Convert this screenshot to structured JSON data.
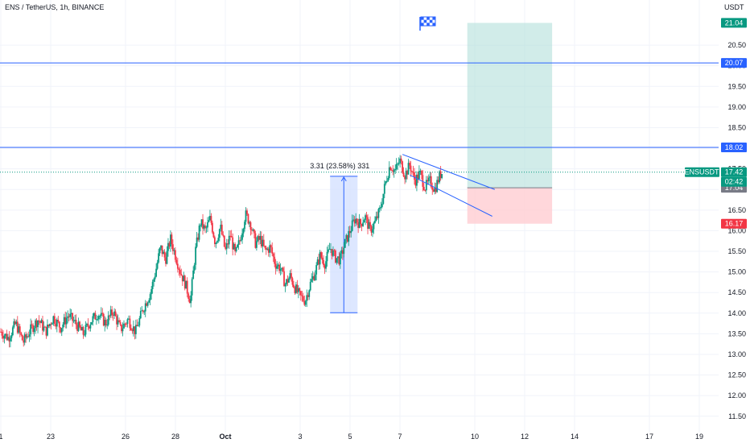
{
  "header": {
    "symbol_title": "ENS / TetherUS, 1h, BINANCE",
    "currency": "USDT",
    "ticker_badge": "ENSUSDT",
    "countdown": "02:42"
  },
  "colors": {
    "up": "#089981",
    "down": "#f23645",
    "line": "#2962ff",
    "target_fill": "#b2dfdb",
    "stop_fill": "#ffcdd2",
    "measure_fill": "#d4e1ff",
    "grid": "#f0f3fa",
    "text": "#131722"
  },
  "chart_data": {
    "type": "candlestick",
    "title": "ENS / TetherUS, 1h, BINANCE",
    "ylabel": "USDT",
    "ylim": [
      11.3,
      21.4
    ],
    "y_ticks": [
      11.5,
      12.0,
      12.5,
      13.0,
      13.5,
      14.0,
      14.5,
      15.0,
      15.5,
      16.0,
      16.5,
      17.0,
      17.5,
      18.0,
      18.5,
      19.0,
      19.5,
      20.0,
      20.5
    ],
    "x_tick_labels": [
      {
        "label": "1",
        "day": 21
      },
      {
        "label": "23",
        "day": 23
      },
      {
        "label": "26",
        "day": 26
      },
      {
        "label": "28",
        "day": 28
      },
      {
        "label": "Oct",
        "day": 30
      },
      {
        "label": "3",
        "day": 33
      },
      {
        "label": "5",
        "day": 35
      },
      {
        "label": "7",
        "day": 37
      },
      {
        "label": "10",
        "day": 40
      },
      {
        "label": "12",
        "day": 42
      },
      {
        "label": "14",
        "day": 44
      },
      {
        "label": "17",
        "day": 47
      },
      {
        "label": "19",
        "day": 49
      }
    ],
    "price_path": [
      [
        21.0,
        13.55
      ],
      [
        21.3,
        13.4
      ],
      [
        21.6,
        13.75
      ],
      [
        21.9,
        13.3
      ],
      [
        22.2,
        13.6
      ],
      [
        22.5,
        13.85
      ],
      [
        22.8,
        13.55
      ],
      [
        23.1,
        13.9
      ],
      [
        23.4,
        13.65
      ],
      [
        23.7,
        13.95
      ],
      [
        24.0,
        13.75
      ],
      [
        24.3,
        13.5
      ],
      [
        24.6,
        13.8
      ],
      [
        24.9,
        14.0
      ],
      [
        25.2,
        13.75
      ],
      [
        25.5,
        14.05
      ],
      [
        25.8,
        13.6
      ],
      [
        26.1,
        13.85
      ],
      [
        26.4,
        13.55
      ],
      [
        26.7,
        14.1
      ],
      [
        27.0,
        14.5
      ],
      [
        27.2,
        15.0
      ],
      [
        27.4,
        15.6
      ],
      [
        27.6,
        15.3
      ],
      [
        27.8,
        15.8
      ],
      [
        28.0,
        15.4
      ],
      [
        28.2,
        15.0
      ],
      [
        28.4,
        14.7
      ],
      [
        28.6,
        14.3
      ],
      [
        28.8,
        15.5
      ],
      [
        29.0,
        16.2
      ],
      [
        29.2,
        16.0
      ],
      [
        29.4,
        16.3
      ],
      [
        29.6,
        15.7
      ],
      [
        29.8,
        16.1
      ],
      [
        30.0,
        15.5
      ],
      [
        30.2,
        15.9
      ],
      [
        30.4,
        15.4
      ],
      [
        30.6,
        15.8
      ],
      [
        30.8,
        16.4
      ],
      [
        31.0,
        16.2
      ],
      [
        31.2,
        15.7
      ],
      [
        31.4,
        15.8
      ],
      [
        31.6,
        15.5
      ],
      [
        31.8,
        15.6
      ],
      [
        32.0,
        15.2
      ],
      [
        32.2,
        15.1
      ],
      [
        32.4,
        14.7
      ],
      [
        32.6,
        14.9
      ],
      [
        32.8,
        14.6
      ],
      [
        33.0,
        14.4
      ],
      [
        33.2,
        14.3
      ],
      [
        33.4,
        14.7
      ],
      [
        33.6,
        15.0
      ],
      [
        33.8,
        15.4
      ],
      [
        34.0,
        15.2
      ],
      [
        34.2,
        15.6
      ],
      [
        34.4,
        15.35
      ],
      [
        34.6,
        15.3
      ],
      [
        34.8,
        15.7
      ],
      [
        35.0,
        16.0
      ],
      [
        35.2,
        16.3
      ],
      [
        35.4,
        16.15
      ],
      [
        35.6,
        16.35
      ],
      [
        35.8,
        16.0
      ],
      [
        36.0,
        16.2
      ],
      [
        36.2,
        16.5
      ],
      [
        36.4,
        17.1
      ],
      [
        36.6,
        17.6
      ],
      [
        36.8,
        17.45
      ],
      [
        37.0,
        17.7
      ],
      [
        37.2,
        17.35
      ],
      [
        37.4,
        17.6
      ],
      [
        37.6,
        17.2
      ],
      [
        37.8,
        17.4
      ],
      [
        38.0,
        17.05
      ],
      [
        38.2,
        17.2
      ],
      [
        38.4,
        17.0
      ],
      [
        38.6,
        17.35
      ],
      [
        38.7,
        17.42
      ]
    ],
    "horizontal_lines": [
      20.07,
      18.02
    ],
    "current_price": 17.42,
    "last_close_dotted": 17.42,
    "measure": {
      "from_day": 34.2,
      "to_day": 35.3,
      "low": 14.01,
      "high": 17.32,
      "label": "3.31 (23.58%) 331"
    },
    "channel": [
      {
        "from": [
          37.1,
          17.85
        ],
        "to": [
          40.8,
          17.0
        ]
      },
      {
        "from": [
          37.4,
          17.35
        ],
        "to": [
          40.7,
          16.35
        ]
      }
    ],
    "long_position": {
      "from_day": 39.7,
      "to_day": 43.1,
      "entry": 17.04,
      "target": 21.04,
      "stop": 16.17
    },
    "badges": [
      {
        "value": "21.04",
        "price": 21.04,
        "color": "#089981"
      },
      {
        "value": "20.07",
        "price": 20.07,
        "color": "#2962ff"
      },
      {
        "value": "18.02",
        "price": 18.02,
        "color": "#2962ff"
      },
      {
        "value": "17.42",
        "price": 17.42,
        "color": "#089981"
      },
      {
        "value": "17.04",
        "price": 17.04,
        "color": "#787b86"
      },
      {
        "value": "16.17",
        "price": 16.17,
        "color": "#f23645"
      }
    ]
  }
}
